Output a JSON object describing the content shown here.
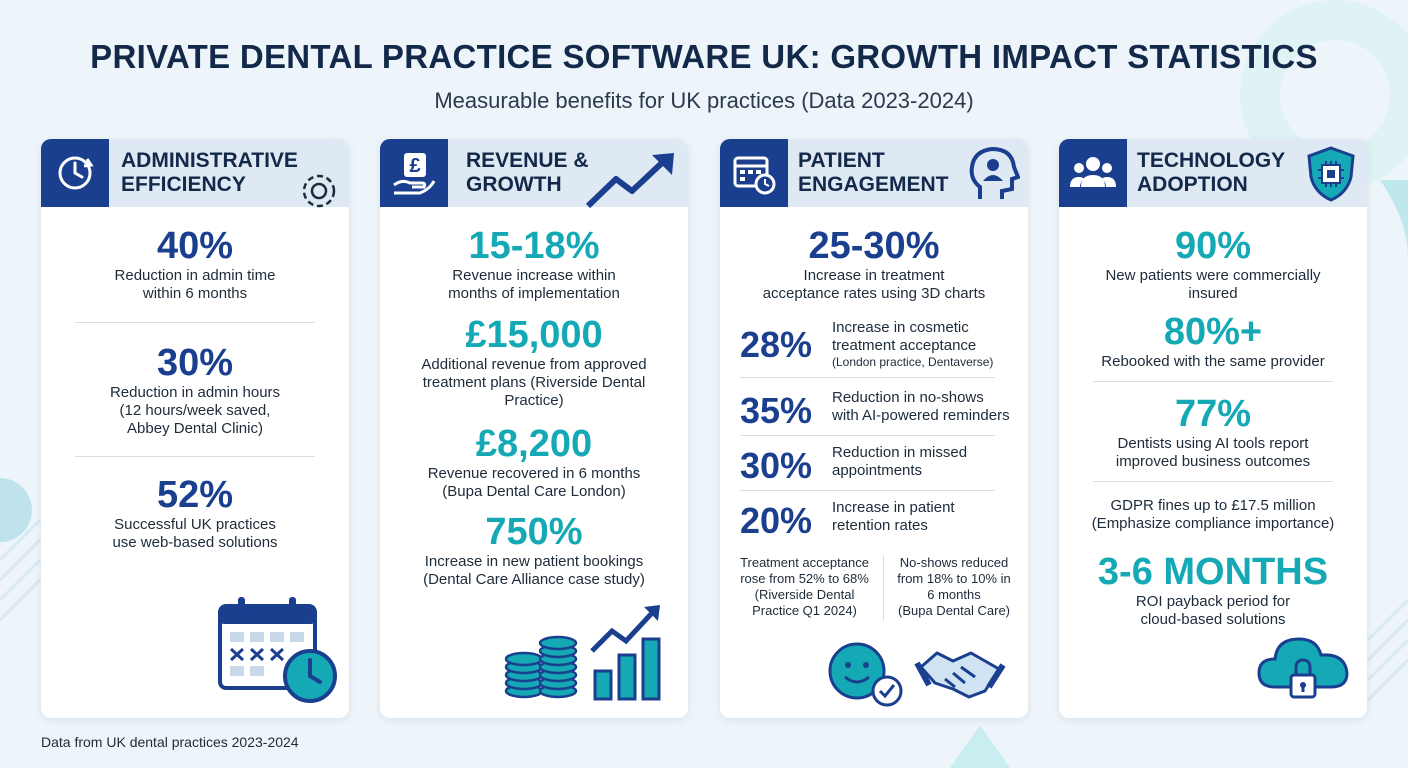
{
  "header": {
    "title": "PRIVATE DENTAL PRACTICE SOFTWARE UK: GROWTH IMPACT STATISTICS",
    "subtitle": "Measurable benefits for UK practices (Data 2023-2024)"
  },
  "colors": {
    "navy": "#1b3f8f",
    "teal": "#14a9b4",
    "header_band": "#dfe9f3",
    "background": "#eef5fa"
  },
  "cards": [
    {
      "title_line1": "ADMINISTRATIVE",
      "title_line2": "EFFICIENCY",
      "icon": "clock-refresh-icon",
      "deco_icon": "gear-icon",
      "stats": [
        {
          "value": "40%",
          "desc1": "Reduction in admin time",
          "desc2": "within 6 months"
        },
        {
          "value": "30%",
          "desc1": "Reduction in admin hours",
          "desc2": "(12 hours/week saved,",
          "desc3": "Abbey Dental Clinic)"
        },
        {
          "value": "52%",
          "desc1": "Successful UK practices",
          "desc2": "use web-based solutions"
        }
      ],
      "illustration": "calendar-clock-icon"
    },
    {
      "title_line1": "REVENUE &",
      "title_line2": "GROWTH",
      "icon": "pound-hand-icon",
      "deco_icon": "trend-arrow-icon",
      "stats": [
        {
          "value": "15-18%",
          "desc1": "Revenue increase within",
          "desc2": "months of implementation"
        },
        {
          "value": "£15,000",
          "desc1": "Additional revenue from approved",
          "desc2": "treatment plans (Riverside Dental",
          "desc3": "Practice)"
        },
        {
          "value": "£8,200",
          "desc1": "Revenue recovered in 6 months",
          "desc2": "(Bupa Dental Care London)"
        },
        {
          "value": "750%",
          "desc1": "Increase in new patient bookings",
          "desc2": "(Dental Care Alliance case study)"
        }
      ],
      "illustration": "coins-bar-chart-icon"
    },
    {
      "title_line1": "PATIENT",
      "title_line2": "ENGAGEMENT",
      "icon": "calendar-clock-icon",
      "deco_icon": "head-profile-icon",
      "top": {
        "value": "25-30%",
        "desc1": "Increase in treatment",
        "desc2": "acceptance rates using 3D charts"
      },
      "rows": [
        {
          "value": "28%",
          "line1": "Increase in cosmetic",
          "line2": "treatment acceptance",
          "line3": "(London practice, Dentaverse)"
        },
        {
          "value": "35%",
          "line1": "Reduction in no-shows",
          "line2": "with AI-powered reminders"
        },
        {
          "value": "30%",
          "line1": "Reduction in missed",
          "line2": "appointments"
        },
        {
          "value": "20%",
          "line1": "Increase in patient",
          "line2": "retention rates"
        }
      ],
      "notes": [
        {
          "l1": "Treatment acceptance",
          "l2": "rose from 52% to 68%",
          "l3": "(Riverside Dental",
          "l4": "Practice Q1 2024)"
        },
        {
          "l1": "No-shows reduced",
          "l2": "from 18% to 10% in",
          "l3": "6 months",
          "l4": "(Bupa Dental Care)"
        }
      ],
      "illustration": "smiley-handshake-icon"
    },
    {
      "title_line1": "TECHNOLOGY",
      "title_line2": "ADOPTION",
      "icon": "users-group-icon",
      "deco_icon": "shield-chip-icon",
      "stats": [
        {
          "value": "90%",
          "desc1": "New patients were commercially",
          "desc2": "insured"
        },
        {
          "value": "80%+",
          "desc1": "Rebooked with the same provider"
        },
        {
          "value": "77%",
          "desc1": "Dentists using AI tools report",
          "desc2": "improved business outcomes"
        },
        {
          "value": "",
          "desc1": "GDPR fines up to £17.5 million",
          "desc2": "(Emphasize compliance importance)"
        },
        {
          "value": "3-6 MONTHS",
          "desc1": "ROI payback period for",
          "desc2": "cloud-based solutions"
        }
      ],
      "illustration": "cloud-lock-icon"
    }
  ],
  "footer": "Data from UK dental practices 2023-2024"
}
